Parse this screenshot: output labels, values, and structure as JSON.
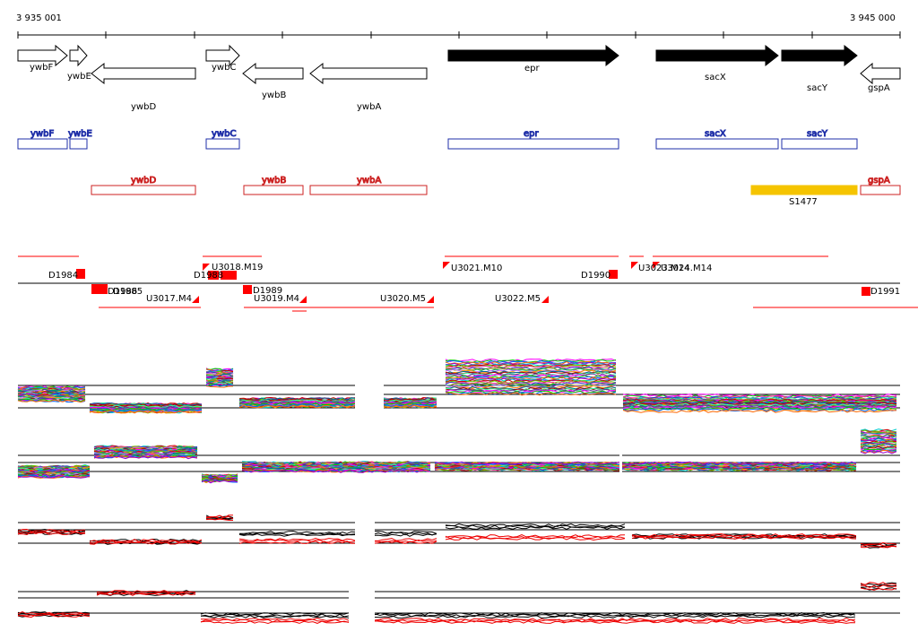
{
  "ruler": {
    "start_label": "3 935 001",
    "end_label": "3 945 000"
  },
  "colors": {
    "annotated_arrow_fill": "#000000",
    "blue_box": "#1f2fa8",
    "red_box": "#cc2222",
    "yellow_box": "#f5c400",
    "feature_red": "#ff0000"
  },
  "gene_arrows": [
    {
      "name": "ywbF",
      "strand": "+",
      "filled": false
    },
    {
      "name": "ywbE",
      "strand": "+",
      "filled": false
    },
    {
      "name": "ywbD",
      "strand": "-",
      "filled": false
    },
    {
      "name": "ywbC",
      "strand": "+",
      "filled": false
    },
    {
      "name": "ywbB",
      "strand": "-",
      "filled": false
    },
    {
      "name": "ywbA",
      "strand": "-",
      "filled": false
    },
    {
      "name": "epr",
      "strand": "+",
      "filled": true
    },
    {
      "name": "sacX",
      "strand": "+",
      "filled": true
    },
    {
      "name": "sacY",
      "strand": "+",
      "filled": true
    },
    {
      "name": "gspA",
      "strand": "-",
      "filled": false
    }
  ],
  "blue_boxes": [
    "ywbF",
    "ywbE",
    "ywbC",
    "epr",
    "sacX",
    "sacY"
  ],
  "red_boxes": [
    "ywbD",
    "ywbB",
    "ywbA",
    "gspA"
  ],
  "yellow_box": {
    "label": "S1477"
  },
  "features_top": [
    {
      "label": "D1984"
    },
    {
      "label": "D1988"
    },
    {
      "label": "U3018.M19"
    },
    {
      "label": "U3021.M10"
    },
    {
      "label": "D1990"
    },
    {
      "label": "U3023.M14"
    },
    {
      "label": "U3024.M14"
    }
  ],
  "features_bottom": [
    {
      "label": "D1986"
    },
    {
      "label": "D1985"
    },
    {
      "label": "U3017.M4"
    },
    {
      "label": "D1989"
    },
    {
      "label": "U3019.M4"
    },
    {
      "label": "U3020.M5"
    },
    {
      "label": "U3022.M5"
    },
    {
      "label": "D1991"
    }
  ],
  "tracks": [
    {
      "kind": "multicolor"
    },
    {
      "kind": "multicolor"
    },
    {
      "kind": "red-black"
    },
    {
      "kind": "red-black"
    }
  ]
}
